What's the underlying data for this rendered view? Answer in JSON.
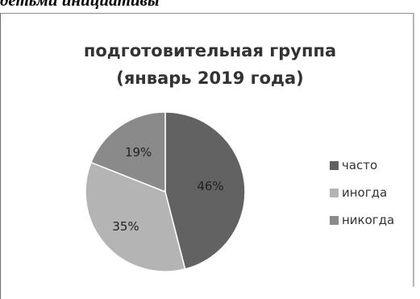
{
  "caption": "детьми инициативы",
  "colors": [
    "#626262",
    "#b4b4b4",
    "#8a8a8a"
  ],
  "chart_data": {
    "type": "pie",
    "title_lines": [
      "подготовительная группа",
      "(январь 2019 года)"
    ],
    "categories": [
      "часто",
      "иногда",
      "никогда"
    ],
    "values": [
      46,
      35,
      19
    ],
    "labels": [
      "46%",
      "35%",
      "19%"
    ],
    "legend": "right"
  }
}
